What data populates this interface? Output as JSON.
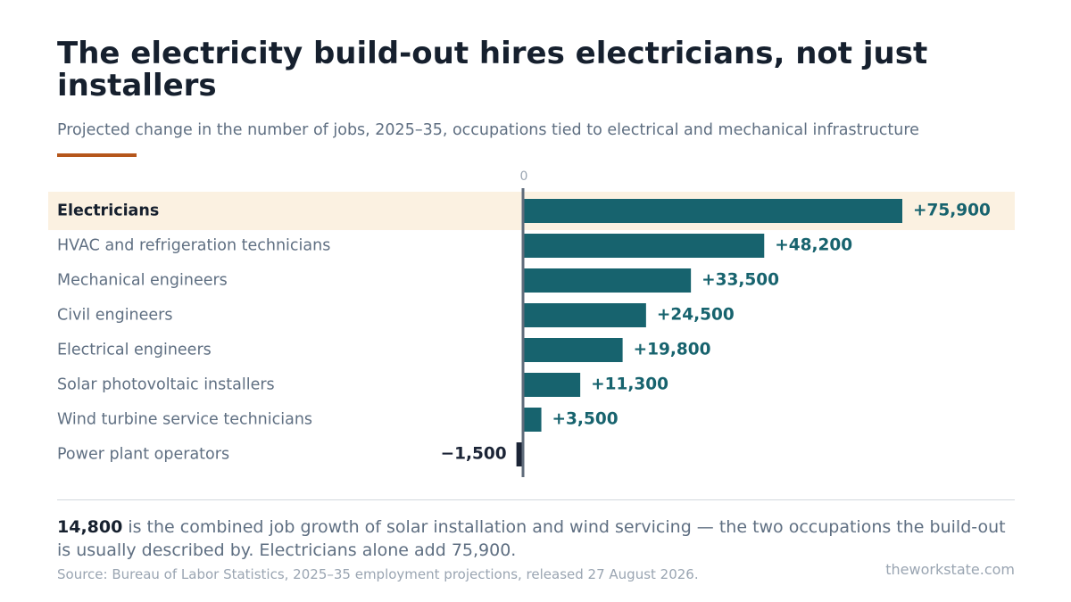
{
  "header": {
    "title": "The electricity build-out hires electricians, not just installers",
    "subtitle": "Projected change in the number of jobs, 2025–35, occupations tied to electrical and mechanical infrastructure"
  },
  "chart_data": {
    "type": "bar",
    "orientation": "horizontal",
    "categories": [
      "Electricians",
      "HVAC and refrigeration technicians",
      "Mechanical engineers",
      "Civil engineers",
      "Electrical engineers",
      "Solar photovoltaic installers",
      "Wind turbine service technicians",
      "Power plant operators"
    ],
    "values": [
      75900,
      48200,
      33500,
      24500,
      19800,
      11300,
      3500,
      -1500
    ],
    "value_labels": [
      "+75,900",
      "+48,200",
      "+33,500",
      "+24,500",
      "+19,800",
      "+11,300",
      "+3,500",
      "−1,500"
    ],
    "highlighted_category": "Electricians",
    "zero_label": "0",
    "xlim": [
      -1500,
      75900
    ],
    "grid": false,
    "legend": "none",
    "colors": {
      "positive_bar": "#17636e",
      "negative_bar": "#1b2436",
      "highlight_band": "#fbf1e1",
      "zero_line": "#5f6b7a",
      "accent": "#b5561b"
    }
  },
  "takeaway": {
    "number": "14,800",
    "text": "is the combined job growth of solar installation and wind servicing — the two occupations the build-out is usually described by. Electricians alone add 75,900."
  },
  "footer": {
    "source": "Source: Bureau of Labor Statistics, 2025–35 employment projections, released 27 August 2026.",
    "brand": "theworkstate.com"
  }
}
